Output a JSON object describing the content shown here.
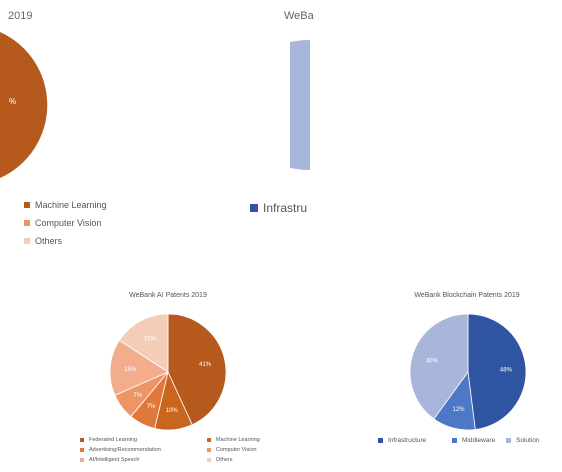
{
  "fragments": {
    "top_left_title": "2019",
    "top_right_title": "WeBa",
    "top_left_pct": "%",
    "top_left_legend": [
      "Machine Learning",
      "Computer Vision",
      "Others"
    ],
    "top_right_legend": "Infrastru"
  },
  "colors": {
    "federated_learning": "#b55a1c",
    "machine_learning": "#c8651e",
    "ml_mid": "#e0783a",
    "computer_vision": "#ee9566",
    "speech": "#f2ad8c",
    "others": "#f4cdb9",
    "infrastructure": "#2f55a2",
    "middleware": "#4d78c8",
    "solution": "#a9b6dc"
  },
  "chart_data": [
    {
      "type": "pie",
      "title": "WeBank AI Patents 2019",
      "labels": [
        "Federated Learning",
        "Machine Learning",
        "Advertising/Recommendation",
        "Computer Vision",
        "AI/Intelligent Speech",
        "Others"
      ],
      "values": [
        41,
        10,
        7,
        7,
        15,
        15
      ],
      "slice_labels": [
        "41%",
        "10%",
        "7%",
        "7%",
        "15%",
        "15%"
      ],
      "legend_placement": "bottom",
      "legend": [
        "Federated Learning",
        "Machine Learning",
        "Advertising/Recommendation",
        "Computer Vision",
        "AI/Intelligent Speech",
        "Others"
      ]
    },
    {
      "type": "pie",
      "title": "WeBank Blockchain Patents 2019",
      "labels": [
        "Infrastructure",
        "Middleware",
        "Solution"
      ],
      "values": [
        48,
        12,
        40
      ],
      "slice_labels": [
        "48%",
        "12%",
        "40%"
      ],
      "legend_placement": "bottom",
      "legend": [
        "Infrastructure",
        "Middleware",
        "Solution"
      ]
    }
  ]
}
